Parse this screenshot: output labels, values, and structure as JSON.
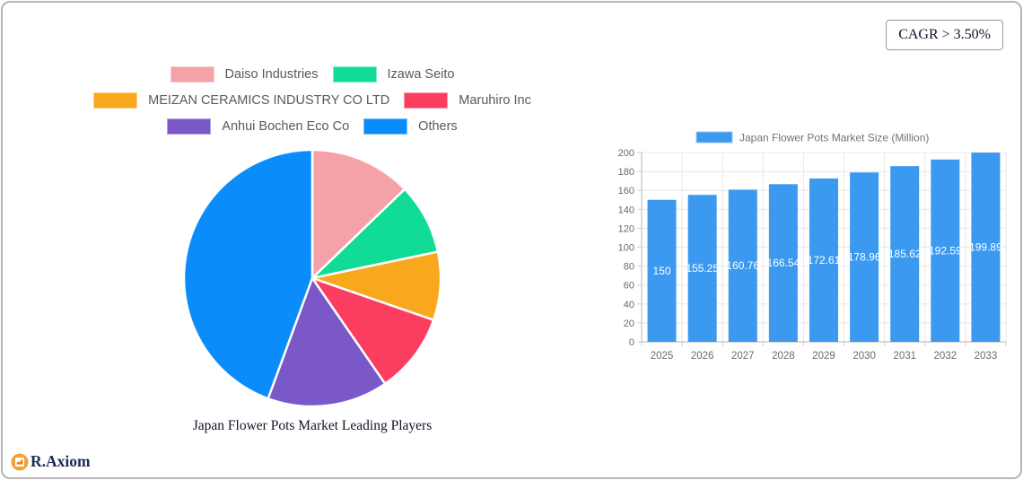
{
  "badge": {
    "label": "CAGR > 3.50%"
  },
  "logo": {
    "text": "R.Axiom",
    "icon": "bar-chart-logo-icon",
    "circle_color": "#F5A13B",
    "text_color": "#1b2b55"
  },
  "colors": {
    "bar_blue": "#3B99F0",
    "grid": "#e8e8e8",
    "axis": "#c2c2c2",
    "tick": "#d0d0d0",
    "axis_text": "#6b6b6b",
    "legend_text": "#595959",
    "bar_label_text": "#ffffff",
    "bar_legend_text": "#737373"
  },
  "chart_data": [
    {
      "type": "pie",
      "title": "Japan Flower Pots Market Leading Players",
      "legend_position": "top",
      "start_angle_deg": 0,
      "labels": [
        "Daiso Industries",
        "Izawa Seito",
        "MEIZAN CERAMICS INDUSTRY CO LTD",
        "Maruhiro Inc",
        "Anhui Bochen Eco Co",
        "Others"
      ],
      "values_percent_est": [
        12.8,
        8.9,
        8.6,
        10.1,
        15.2,
        44.4
      ],
      "colors": [
        "#F5A1A8",
        "#10DC95",
        "#F9A71D",
        "#FB3D5F",
        "#7A58C8",
        "#0A8DFB"
      ]
    },
    {
      "type": "bar",
      "legend_label": "Japan Flower Pots Market Size (Million)",
      "categories": [
        "2025",
        "2026",
        "2027",
        "2028",
        "2029",
        "2030",
        "2031",
        "2032",
        "2033"
      ],
      "values": [
        150,
        155.25,
        160.76,
        166.54,
        172.61,
        178.96,
        185.62,
        192.59,
        199.89
      ],
      "value_labels": [
        "150",
        "155.25",
        "160.76",
        "166.54",
        "172.61",
        "178.96",
        "185.62",
        "192.59",
        "199.89"
      ],
      "ylim": [
        0,
        200
      ],
      "yticks": [
        0,
        20,
        40,
        60,
        80,
        100,
        120,
        140,
        160,
        180,
        200
      ],
      "grid": true,
      "legend_position": "top",
      "bar_color": "#3B99F0"
    }
  ]
}
